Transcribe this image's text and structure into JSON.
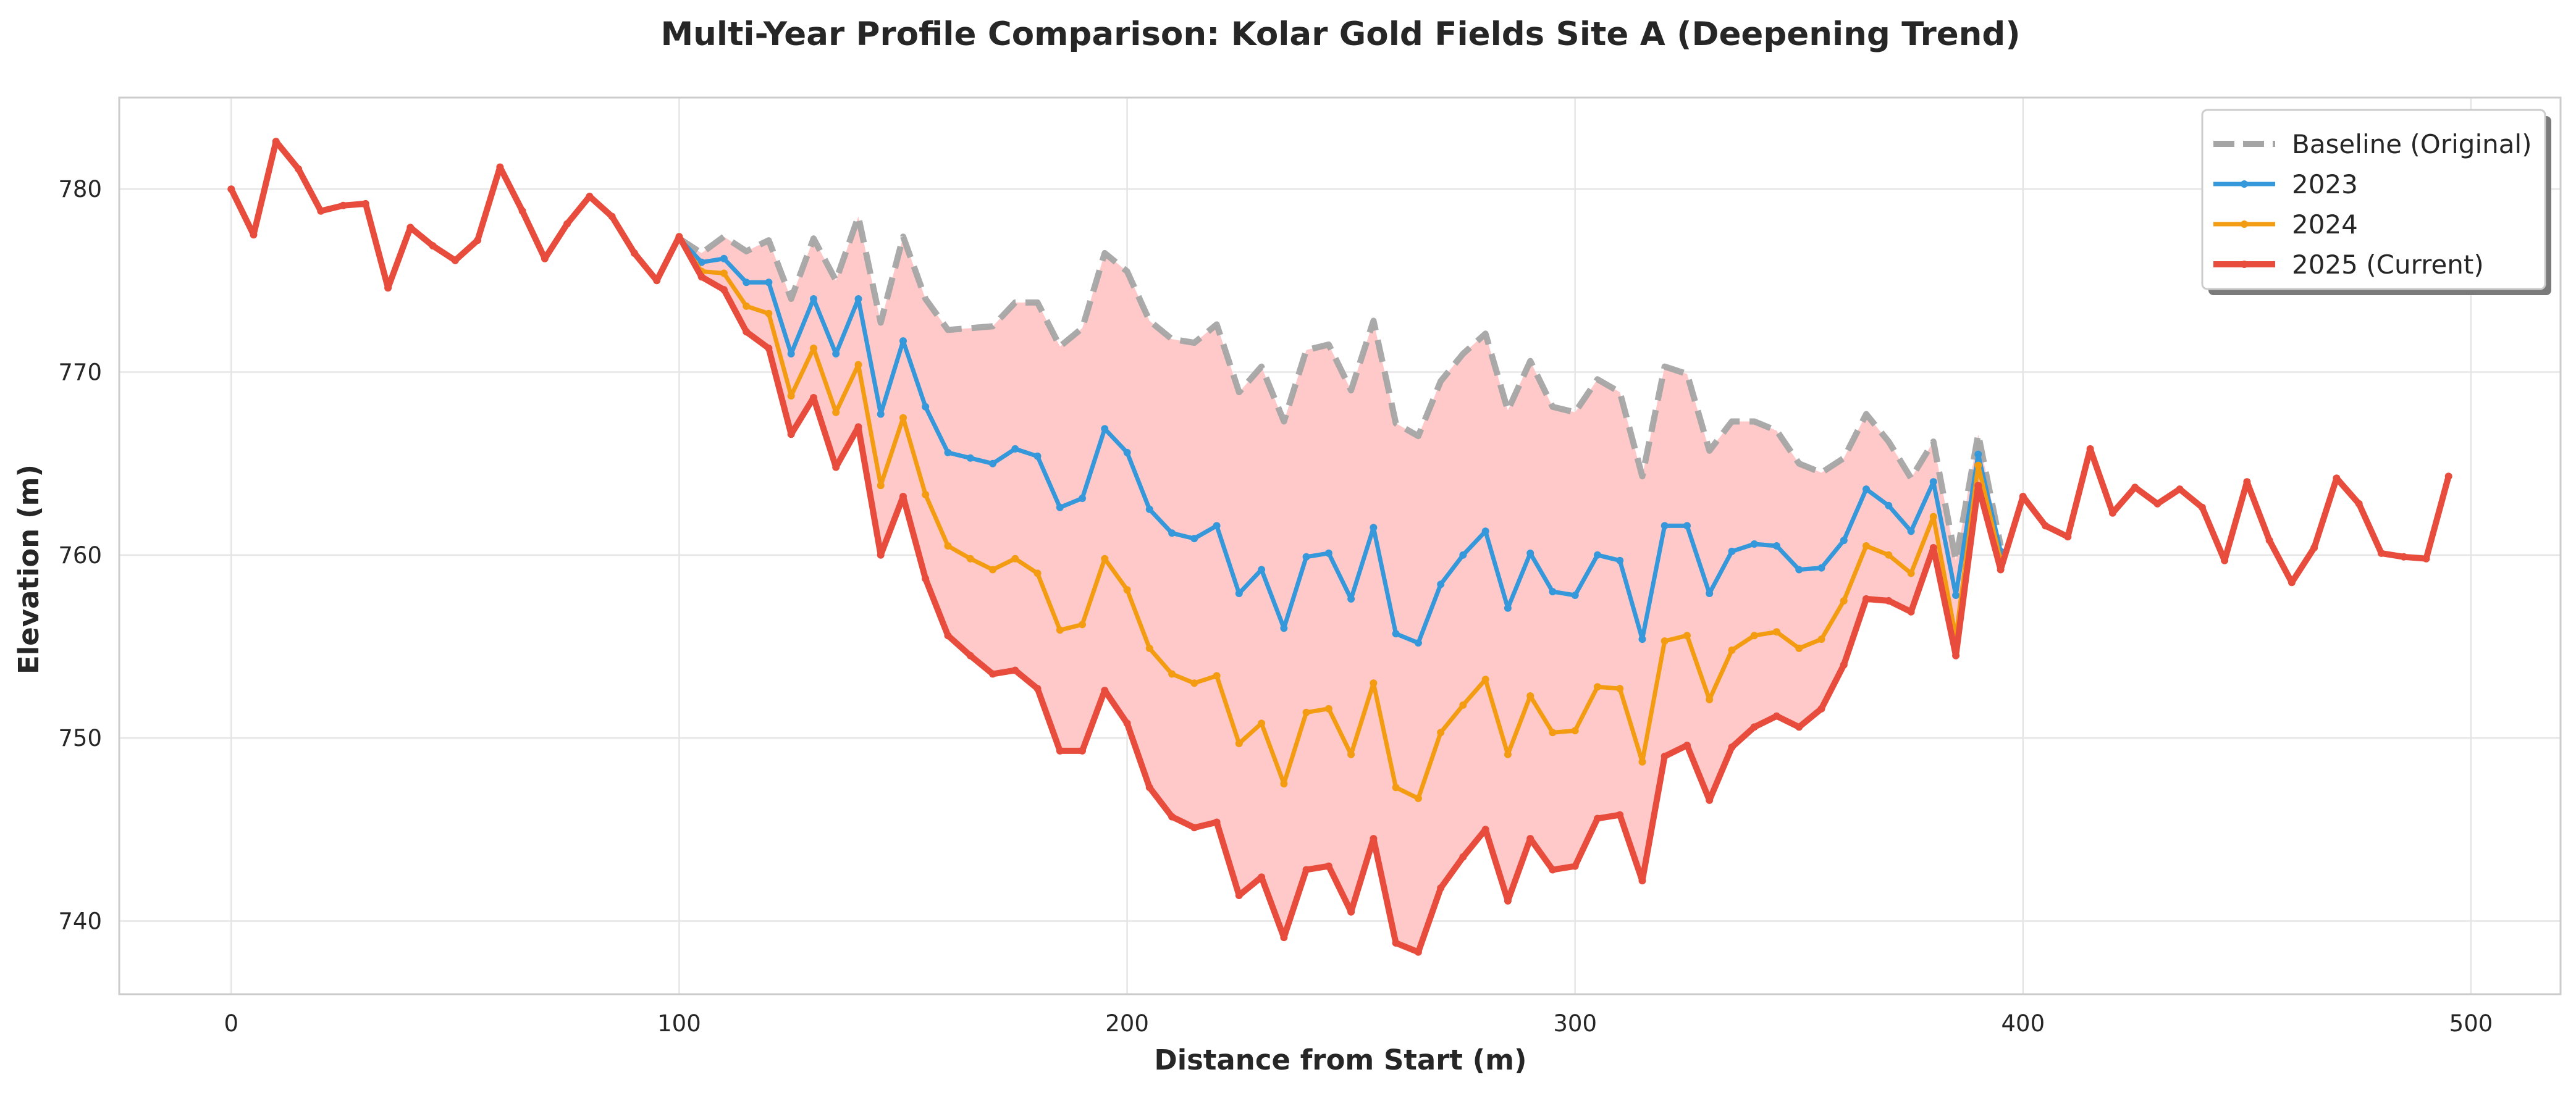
{
  "chart_data": {
    "type": "line",
    "title": "Multi-Year Profile Comparison: Kolar Gold Fields Site A (Deepening Trend)",
    "xlabel": "Distance from Start (m)",
    "ylabel": "Elevation (m)",
    "xlim": [
      -25,
      520
    ],
    "ylim": [
      736,
      785
    ],
    "xticks": [
      0,
      100,
      200,
      300,
      400,
      500
    ],
    "yticks": [
      740,
      750,
      760,
      770,
      780
    ],
    "grid": true,
    "legend_position": "top-right",
    "fill_between": {
      "upper": "Baseline (Original)",
      "lower": "2025 (Current)",
      "color": "#ffc9c9"
    },
    "series": [
      {
        "name": "Baseline (Original)",
        "color": "#a5a5a5",
        "style": "dashed",
        "x": [
          100,
          105,
          110,
          115,
          120,
          125,
          130,
          135,
          140,
          145,
          150,
          155,
          160,
          165,
          170,
          175,
          180,
          185,
          190,
          195,
          200,
          205,
          210,
          215,
          220,
          225,
          230,
          235,
          240,
          245,
          250,
          255,
          260,
          265,
          270,
          275,
          280,
          285,
          290,
          295,
          300,
          305,
          310,
          315,
          320,
          325,
          330,
          335,
          340,
          345,
          350,
          355,
          360,
          365,
          370,
          375,
          380,
          385,
          390,
          395
        ],
        "y": [
          777.3,
          776.5,
          777.4,
          776.6,
          777.2,
          774.0,
          777.3,
          775.0,
          778.5,
          772.7,
          777.4,
          774.0,
          772.3,
          772.4,
          772.5,
          773.8,
          773.8,
          771.4,
          772.4,
          776.5,
          775.5,
          772.8,
          771.8,
          771.6,
          772.6,
          768.9,
          770.3,
          767.3,
          771.2,
          771.5,
          769.0,
          772.8,
          767.2,
          766.5,
          769.5,
          771.0,
          772.1,
          767.9,
          770.6,
          768.1,
          767.8,
          769.6,
          768.9,
          764.3,
          770.3,
          769.9,
          765.7,
          767.3,
          767.3,
          766.8,
          765.0,
          764.5,
          765.3,
          767.7,
          766.2,
          764.2,
          766.2,
          759.7,
          766.6,
          760.5
        ]
      },
      {
        "name": "2023",
        "color": "#3498db",
        "style": "solid",
        "x": [
          100,
          105,
          110,
          115,
          120,
          125,
          130,
          135,
          140,
          145,
          150,
          155,
          160,
          165,
          170,
          175,
          180,
          185,
          190,
          195,
          200,
          205,
          210,
          215,
          220,
          225,
          230,
          235,
          240,
          245,
          250,
          255,
          260,
          265,
          270,
          275,
          280,
          285,
          290,
          295,
          300,
          305,
          310,
          315,
          320,
          325,
          330,
          335,
          340,
          345,
          350,
          355,
          360,
          365,
          370,
          375,
          380,
          385,
          390,
          395
        ],
        "y": [
          777.3,
          776.0,
          776.2,
          774.9,
          774.9,
          771.0,
          774.0,
          771.0,
          774.0,
          767.7,
          771.7,
          768.1,
          765.6,
          765.3,
          765.0,
          765.8,
          765.4,
          762.6,
          763.1,
          766.9,
          765.6,
          762.5,
          761.2,
          760.9,
          761.6,
          757.9,
          759.2,
          756.0,
          759.9,
          760.1,
          757.6,
          761.5,
          755.7,
          755.2,
          758.4,
          760.0,
          761.3,
          757.1,
          760.1,
          758.0,
          757.8,
          760.0,
          759.7,
          755.4,
          761.6,
          761.6,
          757.9,
          760.2,
          760.6,
          760.5,
          759.2,
          759.3,
          760.8,
          763.6,
          762.7,
          761.3,
          764.0,
          757.8,
          765.5,
          760.2
        ]
      },
      {
        "name": "2024",
        "color": "#f39c12",
        "style": "solid",
        "x": [
          100,
          105,
          110,
          115,
          120,
          125,
          130,
          135,
          140,
          145,
          150,
          155,
          160,
          165,
          170,
          175,
          180,
          185,
          190,
          195,
          200,
          205,
          210,
          215,
          220,
          225,
          230,
          235,
          240,
          245,
          250,
          255,
          260,
          265,
          270,
          275,
          280,
          285,
          290,
          295,
          300,
          305,
          310,
          315,
          320,
          325,
          330,
          335,
          340,
          345,
          350,
          355,
          360,
          365,
          370,
          375,
          380,
          385,
          390,
          395
        ],
        "y": [
          777.3,
          775.5,
          775.4,
          773.6,
          773.2,
          768.7,
          771.3,
          767.8,
          770.4,
          763.8,
          767.5,
          763.3,
          760.5,
          759.8,
          759.2,
          759.8,
          759.0,
          755.9,
          756.2,
          759.8,
          758.1,
          754.9,
          753.5,
          753.0,
          753.4,
          749.7,
          750.8,
          747.5,
          751.4,
          751.6,
          749.1,
          753.0,
          747.3,
          746.7,
          750.3,
          751.8,
          753.2,
          749.1,
          752.3,
          750.3,
          750.4,
          752.8,
          752.7,
          748.7,
          755.3,
          755.6,
          752.1,
          754.8,
          755.6,
          755.8,
          754.9,
          755.4,
          757.5,
          760.5,
          760.0,
          759.0,
          762.1,
          755.5,
          764.9,
          759.7
        ]
      },
      {
        "name": "2025 (Current)",
        "color": "#e74c3c",
        "style": "solid",
        "x": [
          0,
          5,
          10,
          15,
          20,
          25,
          30,
          35,
          40,
          45,
          50,
          55,
          60,
          65,
          70,
          75,
          80,
          85,
          90,
          95,
          100,
          105,
          110,
          115,
          120,
          125,
          130,
          135,
          140,
          145,
          150,
          155,
          160,
          165,
          170,
          175,
          180,
          185,
          190,
          195,
          200,
          205,
          210,
          215,
          220,
          225,
          230,
          235,
          240,
          245,
          250,
          255,
          260,
          265,
          270,
          275,
          280,
          285,
          290,
          295,
          300,
          305,
          310,
          315,
          320,
          325,
          330,
          335,
          340,
          345,
          350,
          355,
          360,
          365,
          370,
          375,
          380,
          385,
          390,
          395,
          400,
          405,
          410,
          415,
          420,
          425,
          430,
          435,
          440,
          445,
          450,
          455,
          460,
          465,
          470,
          475,
          480,
          485,
          490,
          495
        ],
        "y": [
          780.0,
          777.5,
          782.6,
          781.1,
          778.8,
          779.1,
          779.2,
          774.6,
          777.9,
          776.9,
          776.1,
          777.2,
          781.2,
          778.8,
          776.2,
          778.1,
          779.6,
          778.5,
          776.5,
          775.0,
          777.4,
          775.2,
          774.5,
          772.2,
          771.3,
          766.6,
          768.6,
          764.8,
          767.0,
          760.0,
          763.2,
          758.7,
          755.6,
          754.5,
          753.5,
          753.7,
          752.7,
          749.3,
          749.3,
          752.6,
          750.8,
          747.3,
          745.7,
          745.1,
          745.4,
          741.4,
          742.4,
          739.1,
          742.8,
          743.0,
          740.5,
          744.5,
          738.8,
          738.3,
          741.8,
          743.5,
          745.0,
          741.1,
          744.5,
          742.8,
          743.0,
          745.6,
          745.8,
          742.2,
          749.0,
          749.6,
          746.6,
          749.5,
          750.6,
          751.2,
          750.6,
          751.6,
          754.0,
          757.6,
          757.5,
          756.9,
          760.4,
          754.5,
          763.8,
          759.2,
          763.2,
          761.6,
          761.0,
          765.8,
          762.3,
          763.7,
          762.8,
          763.6,
          762.6,
          759.7,
          764.0,
          760.8,
          758.5,
          760.4,
          764.2,
          762.8,
          760.1,
          759.9,
          759.8,
          764.3
        ]
      }
    ]
  }
}
